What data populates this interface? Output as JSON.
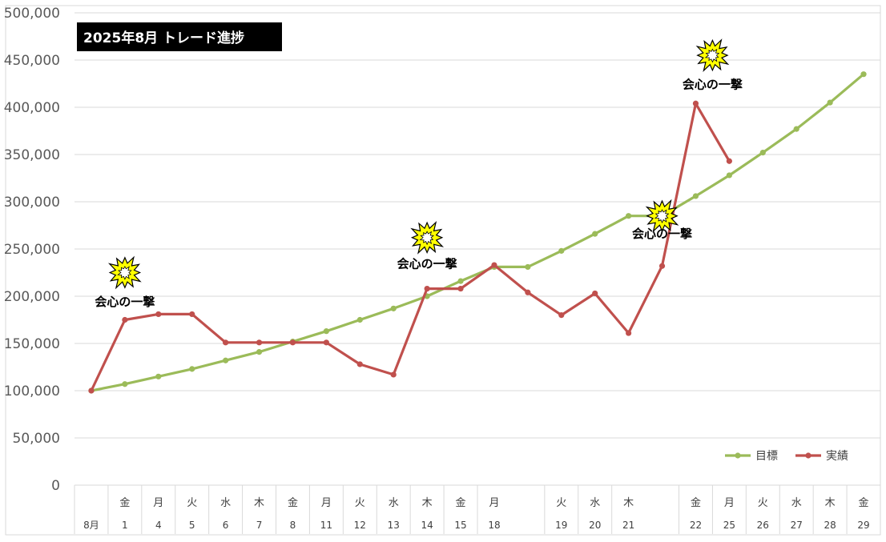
{
  "chart_data": {
    "type": "line",
    "title": "2025年8月 トレード進捗",
    "ylim": [
      0,
      500000
    ],
    "y_ticks": [
      "0",
      "50,000",
      "100,000",
      "150,000",
      "200,000",
      "250,000",
      "300,000",
      "350,000",
      "400,000",
      "450,000",
      "500,000"
    ],
    "y_tick_values": [
      0,
      50000,
      100000,
      150000,
      200000,
      250000,
      300000,
      350000,
      400000,
      450000,
      500000
    ],
    "legend_position": "bottom-right",
    "grid": true,
    "categories": [
      {
        "dow": "",
        "day": "8月"
      },
      {
        "dow": "金",
        "day": "1"
      },
      {
        "dow": "月",
        "day": "4"
      },
      {
        "dow": "火",
        "day": "5"
      },
      {
        "dow": "水",
        "day": "6"
      },
      {
        "dow": "木",
        "day": "7"
      },
      {
        "dow": "金",
        "day": "8"
      },
      {
        "dow": "月",
        "day": "11"
      },
      {
        "dow": "火",
        "day": "12"
      },
      {
        "dow": "水",
        "day": "13"
      },
      {
        "dow": "木",
        "day": "14"
      },
      {
        "dow": "金",
        "day": "15"
      },
      {
        "dow": "月",
        "day": "18"
      },
      {
        "dow": "",
        "day": ""
      },
      {
        "dow": "火",
        "day": "19"
      },
      {
        "dow": "水",
        "day": "20"
      },
      {
        "dow": "木",
        "day": "21"
      },
      {
        "dow": "",
        "day": ""
      },
      {
        "dow": "金",
        "day": "22"
      },
      {
        "dow": "月",
        "day": "25"
      },
      {
        "dow": "火",
        "day": "26"
      },
      {
        "dow": "水",
        "day": "27"
      },
      {
        "dow": "木",
        "day": "28"
      },
      {
        "dow": "金",
        "day": "29"
      }
    ],
    "series": [
      {
        "name": "目標",
        "color": "#9bbb59",
        "values": [
          100000,
          107000,
          115000,
          123000,
          132000,
          141000,
          152000,
          163000,
          175000,
          187000,
          200000,
          216000,
          231000,
          231000,
          248000,
          266000,
          285000,
          285000,
          306000,
          328000,
          352000,
          377000,
          405000,
          435000
        ]
      },
      {
        "name": "実績",
        "color": "#c0504d",
        "values": [
          100000,
          175000,
          181000,
          181000,
          151000,
          151000,
          151000,
          151000,
          128000,
          117000,
          208000,
          208000,
          233000,
          204000,
          180000,
          203000,
          161000,
          232000,
          404000,
          343000,
          null,
          null,
          null,
          null
        ]
      }
    ],
    "annotations": [
      {
        "text": "会心の一撃",
        "x": 1,
        "y": 190000
      },
      {
        "text": "会心の一撃",
        "x": 10,
        "y": 230000
      },
      {
        "text": "会心の一撃",
        "x": 17,
        "y": 262000
      },
      {
        "text": "会心の一撃",
        "x": 18.5,
        "y": 420000
      }
    ],
    "starbursts": [
      {
        "x": 1,
        "y": 225000
      },
      {
        "x": 10,
        "y": 262000
      },
      {
        "x": 17,
        "y": 285000
      },
      {
        "x": 18.5,
        "y": 455000
      }
    ]
  }
}
